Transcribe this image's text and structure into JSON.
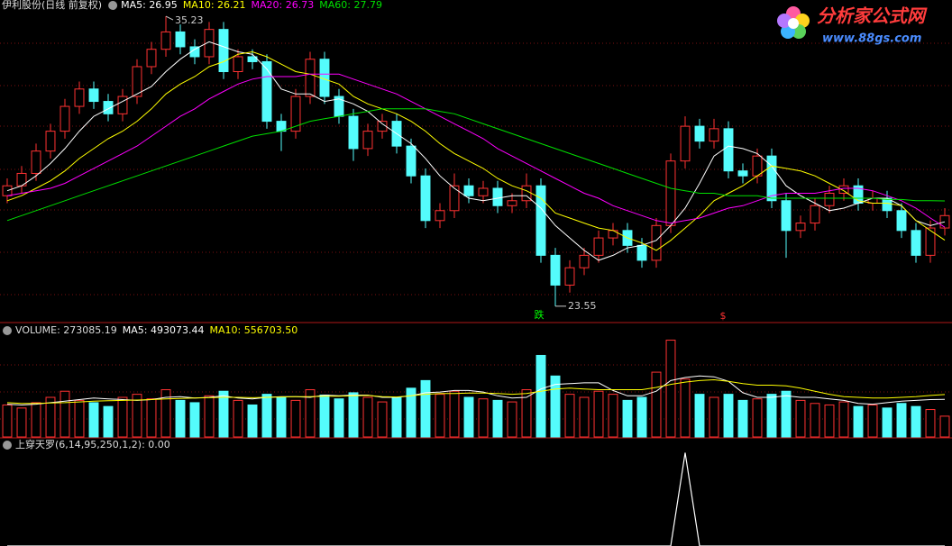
{
  "header": {
    "title": "伊利股份(日线 前复权)",
    "separator": ": "
  },
  "logo": {
    "name": "分析家公式网",
    "url": "www.88gs.com"
  },
  "signals": [
    "跌",
    "$"
  ],
  "chart_data": [
    {
      "type": "candlestick",
      "up_color": "#ff3232",
      "down_color": "#54fcfc",
      "ylim": [
        23.0,
        35.45
      ],
      "open": [
        28.0,
        28.4,
        28.9,
        29.8,
        30.6,
        31.6,
        32.3,
        31.8,
        31.3,
        32.0,
        33.2,
        33.9,
        34.6,
        34.0,
        33.6,
        34.7,
        33.0,
        33.6,
        33.4,
        31.0,
        30.6,
        32.0,
        33.5,
        32.0,
        31.2,
        29.9,
        30.6,
        31.0,
        30.0,
        28.8,
        27.0,
        27.4,
        28.4,
        28.0,
        28.3,
        27.6,
        27.8,
        28.4,
        25.6,
        24.4,
        25.1,
        25.6,
        26.3,
        26.6,
        26.0,
        25.4,
        26.8,
        29.4,
        30.8,
        30.2,
        30.7,
        29.0,
        28.8,
        29.6,
        27.8,
        26.6,
        26.9,
        27.6,
        28.1,
        28.4,
        27.7,
        27.9,
        27.4,
        26.6,
        25.6,
        26.7
      ],
      "high": [
        28.7,
        29.2,
        30.1,
        30.9,
        31.9,
        32.6,
        32.6,
        32.1,
        32.3,
        33.5,
        34.2,
        35.23,
        34.9,
        34.3,
        35.0,
        35.0,
        33.9,
        33.9,
        33.7,
        31.3,
        32.3,
        33.8,
        33.8,
        32.3,
        31.5,
        30.9,
        31.3,
        31.3,
        30.3,
        29.1,
        27.7,
        28.9,
        28.7,
        28.6,
        28.6,
        28.1,
        28.9,
        28.7,
        25.9,
        25.4,
        25.9,
        26.6,
        26.9,
        26.9,
        26.3,
        27.1,
        29.7,
        31.2,
        31.1,
        31.1,
        31.0,
        29.3,
        29.9,
        29.9,
        28.1,
        27.2,
        27.9,
        28.4,
        28.7,
        28.7,
        28.2,
        28.2,
        27.7,
        26.9,
        27.0,
        27.5
      ],
      "low": [
        27.7,
        28.1,
        28.6,
        29.5,
        30.3,
        31.3,
        31.5,
        31.0,
        31.0,
        31.7,
        32.9,
        33.6,
        33.7,
        33.3,
        33.3,
        32.7,
        32.7,
        33.1,
        30.7,
        29.8,
        30.3,
        31.7,
        31.7,
        30.9,
        29.4,
        29.6,
        30.3,
        29.7,
        28.5,
        26.7,
        26.7,
        27.1,
        27.7,
        27.7,
        27.3,
        27.3,
        27.5,
        25.3,
        23.55,
        24.1,
        24.8,
        25.3,
        26.0,
        25.7,
        25.1,
        25.1,
        26.5,
        29.1,
        29.9,
        29.9,
        28.7,
        28.5,
        28.5,
        27.5,
        25.5,
        26.3,
        26.6,
        27.3,
        27.8,
        27.4,
        27.4,
        27.1,
        26.3,
        25.3,
        25.3,
        26.4
      ],
      "close": [
        28.4,
        28.9,
        29.8,
        30.6,
        31.6,
        32.3,
        31.8,
        31.3,
        32.0,
        33.2,
        33.9,
        34.6,
        34.0,
        33.6,
        34.7,
        33.0,
        33.6,
        33.4,
        31.0,
        30.6,
        32.0,
        33.5,
        32.0,
        31.2,
        29.9,
        30.6,
        31.0,
        30.0,
        28.8,
        27.0,
        27.4,
        28.4,
        28.0,
        28.3,
        27.6,
        27.8,
        28.4,
        25.6,
        24.4,
        25.1,
        25.6,
        26.3,
        26.6,
        26.0,
        25.4,
        26.8,
        29.4,
        30.8,
        30.2,
        30.7,
        29.0,
        28.8,
        29.6,
        27.8,
        26.6,
        26.9,
        27.6,
        28.1,
        28.4,
        27.7,
        27.9,
        27.4,
        26.6,
        25.6,
        26.7,
        27.2
      ],
      "series": [
        {
          "name": "MA5",
          "color": "#ffffff",
          "values": [
            28.2,
            28.4,
            28.8,
            29.3,
            29.9,
            30.6,
            31.2,
            31.5,
            31.8,
            32.1,
            32.4,
            33.0,
            33.5,
            33.9,
            34.2,
            34.0,
            33.8,
            33.7,
            33.1,
            32.3,
            32.1,
            32.1,
            31.8,
            31.9,
            31.7,
            31.4,
            30.9,
            30.5,
            30.1,
            29.5,
            28.8,
            28.3,
            27.9,
            27.8,
            27.9,
            28.0,
            28.0,
            27.5,
            26.8,
            26.3,
            25.8,
            25.4,
            25.6,
            25.9,
            26.0,
            26.2,
            26.8,
            27.5,
            28.5,
            29.6,
            30.0,
            29.9,
            29.7,
            29.2,
            28.4,
            28.0,
            27.7,
            27.4,
            27.5,
            27.7,
            27.9,
            27.9,
            27.6,
            27.0,
            26.8,
            26.95
          ]
        },
        {
          "name": "MA10",
          "color": "#ffff00",
          "values": [
            27.8,
            28.0,
            28.3,
            28.6,
            29.0,
            29.5,
            29.9,
            30.3,
            30.6,
            31.0,
            31.5,
            32.1,
            32.5,
            32.8,
            33.2,
            33.4,
            33.7,
            33.8,
            33.6,
            33.3,
            33.0,
            32.9,
            32.7,
            32.5,
            32.0,
            31.7,
            31.5,
            31.3,
            31.0,
            30.6,
            30.1,
            29.7,
            29.4,
            29.1,
            28.7,
            28.4,
            28.2,
            27.9,
            27.3,
            27.1,
            26.9,
            26.7,
            26.6,
            26.3,
            26.1,
            25.8,
            26.2,
            26.7,
            27.2,
            27.8,
            28.1,
            28.4,
            28.8,
            29.2,
            29.1,
            29.0,
            28.8,
            28.5,
            28.2,
            27.8,
            27.7,
            27.7,
            27.6,
            27.0,
            26.6,
            26.21
          ]
        },
        {
          "name": "MA20",
          "color": "#ff00ff",
          "values": [
            28.0,
            28.1,
            28.2,
            28.3,
            28.5,
            28.8,
            29.1,
            29.4,
            29.7,
            30.0,
            30.4,
            30.8,
            31.2,
            31.5,
            31.9,
            32.2,
            32.5,
            32.7,
            32.8,
            32.8,
            32.8,
            32.9,
            32.9,
            32.9,
            32.7,
            32.5,
            32.3,
            32.1,
            31.8,
            31.5,
            31.2,
            30.9,
            30.6,
            30.3,
            29.9,
            29.6,
            29.3,
            29.0,
            28.7,
            28.4,
            28.1,
            27.9,
            27.6,
            27.4,
            27.2,
            27.0,
            26.9,
            27.0,
            27.1,
            27.3,
            27.5,
            27.6,
            27.8,
            28.0,
            28.1,
            28.1,
            28.1,
            28.2,
            28.3,
            28.3,
            28.2,
            28.0,
            27.8,
            27.5,
            27.1,
            26.73
          ]
        },
        {
          "name": "MA60",
          "color": "#00e000",
          "values": [
            27.0,
            27.2,
            27.4,
            27.6,
            27.8,
            28.0,
            28.2,
            28.4,
            28.6,
            28.8,
            29.0,
            29.2,
            29.4,
            29.6,
            29.8,
            30.0,
            30.2,
            30.4,
            30.5,
            30.6,
            30.8,
            31.0,
            31.1,
            31.2,
            31.3,
            31.4,
            31.5,
            31.5,
            31.5,
            31.5,
            31.4,
            31.3,
            31.1,
            30.9,
            30.7,
            30.5,
            30.3,
            30.1,
            29.9,
            29.7,
            29.5,
            29.3,
            29.1,
            28.9,
            28.7,
            28.5,
            28.3,
            28.2,
            28.1,
            28.1,
            28.0,
            28.0,
            28.0,
            27.9,
            27.9,
            27.9,
            27.9,
            27.9,
            27.9,
            27.9,
            27.9,
            27.85,
            27.85,
            27.8,
            27.8,
            27.79
          ]
        }
      ]
    },
    {
      "type": "volume",
      "name": "VOLUME",
      "ylim": [
        0,
        1300000
      ],
      "values": [
        420000,
        380000,
        450000,
        520000,
        600000,
        480000,
        450000,
        400000,
        520000,
        560000,
        500000,
        620000,
        480000,
        450000,
        540000,
        600000,
        480000,
        420000,
        560000,
        520000,
        480000,
        620000,
        550000,
        500000,
        580000,
        520000,
        460000,
        520000,
        640000,
        740000,
        560000,
        600000,
        520000,
        500000,
        480000,
        460000,
        620000,
        1070000,
        800000,
        560000,
        520000,
        600000,
        560000,
        480000,
        520000,
        850000,
        1270000,
        760000,
        560000,
        520000,
        560000,
        480000,
        500000,
        560000,
        600000,
        480000,
        440000,
        420000,
        460000,
        400000,
        420000,
        380000,
        440000,
        400000,
        360000,
        273085.19
      ],
      "series": [
        {
          "name": "MA5",
          "color": "#ffffff",
          "values": [
            430000,
            420000,
            430000,
            450000,
            470000,
            490000,
            510000,
            500000,
            490000,
            480000,
            490000,
            520000,
            530000,
            510000,
            520000,
            540000,
            510000,
            500000,
            520000,
            530000,
            530000,
            520000,
            550000,
            540000,
            550000,
            550000,
            520000,
            520000,
            540000,
            580000,
            590000,
            610000,
            610000,
            590000,
            540000,
            510000,
            520000,
            630000,
            690000,
            700000,
            710000,
            710000,
            610000,
            540000,
            540000,
            600000,
            740000,
            780000,
            800000,
            790000,
            730000,
            580000,
            520000,
            520000,
            540000,
            520000,
            520000,
            500000,
            480000,
            440000,
            430000,
            450000,
            470000,
            480000,
            490000,
            493073.44
          ]
        },
        {
          "name": "MA10",
          "color": "#ffff00",
          "values": [
            450000,
            440000,
            440000,
            445000,
            450000,
            460000,
            470000,
            475000,
            480000,
            485000,
            490000,
            500000,
            505000,
            510000,
            515000,
            520000,
            520000,
            515000,
            520000,
            525000,
            530000,
            530000,
            535000,
            535000,
            540000,
            545000,
            530000,
            525000,
            540000,
            560000,
            570000,
            570000,
            575000,
            575000,
            570000,
            560000,
            570000,
            600000,
            630000,
            640000,
            630000,
            620000,
            620000,
            620000,
            620000,
            650000,
            690000,
            720000,
            740000,
            750000,
            730000,
            700000,
            680000,
            680000,
            670000,
            640000,
            600000,
            560000,
            530000,
            520000,
            510000,
            510000,
            520000,
            530000,
            545000,
            556703.5
          ],
          "value_labels": [
            null,
            null,
            null,
            null,
            null,
            null,
            null,
            null,
            null,
            null,
            null,
            null,
            null,
            null,
            null,
            null,
            null,
            null,
            null,
            null,
            null,
            null,
            null,
            null,
            null,
            null,
            null,
            null,
            null,
            null,
            null,
            null,
            null,
            null,
            null,
            null,
            null,
            null,
            null,
            null,
            null,
            null,
            null,
            null,
            null,
            null,
            null,
            null,
            null,
            null,
            null,
            null,
            null,
            null,
            null,
            null,
            null,
            null,
            null,
            null,
            null,
            null,
            null,
            null,
            null,
            "556703.50"
          ]
        }
      ]
    },
    {
      "type": "line",
      "name": "上穿天罗(6,14,95,250,1,2)",
      "color": "#ffffff",
      "ylim": [
        0,
        1.15
      ],
      "values": [
        0,
        0,
        0,
        0,
        0,
        0,
        0,
        0,
        0,
        0,
        0,
        0,
        0,
        0,
        0,
        0,
        0,
        0,
        0,
        0,
        0,
        0,
        0,
        0,
        0,
        0,
        0,
        0,
        0,
        0,
        0,
        0,
        0,
        0,
        0,
        0,
        0,
        0,
        0,
        0,
        0,
        0,
        0,
        0,
        0,
        0,
        0,
        1,
        0,
        0,
        0,
        0,
        0,
        0,
        0,
        0,
        0,
        0,
        0,
        0,
        0,
        0,
        0,
        0,
        0,
        0
      ],
      "value_labels": [
        null,
        null,
        null,
        null,
        null,
        null,
        null,
        null,
        null,
        null,
        null,
        null,
        null,
        null,
        null,
        null,
        null,
        null,
        null,
        null,
        null,
        null,
        null,
        null,
        null,
        null,
        null,
        null,
        null,
        null,
        null,
        null,
        null,
        null,
        null,
        null,
        null,
        null,
        null,
        null,
        null,
        null,
        null,
        null,
        null,
        null,
        null,
        null,
        null,
        null,
        null,
        null,
        null,
        null,
        null,
        null,
        null,
        null,
        null,
        null,
        null,
        null,
        null,
        null,
        null,
        "0.00"
      ]
    }
  ]
}
